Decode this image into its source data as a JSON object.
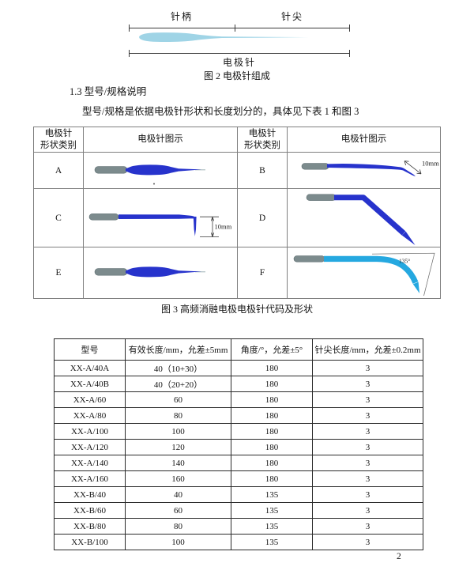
{
  "page": {
    "number": "2"
  },
  "figure2": {
    "label_handle": "针柄",
    "label_tip": "针尖",
    "label_whole": "电极针",
    "caption": "图 2 电极针组成"
  },
  "section": {
    "heading": "1.3 型号/规格说明",
    "body": "型号/规格是依据电极针形状和长度划分的，具体见下表 1 和图 3"
  },
  "figure3": {
    "caption": "图 3 高频消融电极电极针代码及形状",
    "header_category": "电极针\n形状类别",
    "header_illustration": "电极针图示",
    "shapes": [
      {
        "code": "A",
        "dim_label": ""
      },
      {
        "code": "B",
        "dim_label": "10mm"
      },
      {
        "code": "C",
        "dim_label": "10mm"
      },
      {
        "code": "D",
        "dim_label": ""
      },
      {
        "code": "E",
        "dim_label": ""
      },
      {
        "code": "F",
        "dim_label": "135°"
      }
    ]
  },
  "spec_table": {
    "headers": [
      "型号",
      "有效长度/mm，允差±5mm",
      "角度/°，允差±5°",
      "针尖长度/mm，允差±0.2mm"
    ],
    "rows": [
      [
        "XX-A/40A",
        "40（10+30）",
        "180",
        "3"
      ],
      [
        "XX-A/40B",
        "40（20+20）",
        "180",
        "3"
      ],
      [
        "XX-A/60",
        "60",
        "180",
        "3"
      ],
      [
        "XX-A/80",
        "80",
        "180",
        "3"
      ],
      [
        "XX-A/100",
        "100",
        "180",
        "3"
      ],
      [
        "XX-A/120",
        "120",
        "180",
        "3"
      ],
      [
        "XX-A/140",
        "140",
        "180",
        "3"
      ],
      [
        "XX-A/160",
        "160",
        "180",
        "3"
      ],
      [
        "XX-B/40",
        "40",
        "135",
        "3"
      ],
      [
        "XX-B/60",
        "60",
        "135",
        "3"
      ],
      [
        "XX-B/80",
        "80",
        "135",
        "3"
      ],
      [
        "XX-B/100",
        "100",
        "135",
        "3"
      ]
    ]
  },
  "colors": {
    "needle_blue": "#2733cc",
    "needle_cyan": "#25a8e0",
    "handle_gray": "#7c8b8d",
    "handle_edge": "#5d6d70",
    "pale_blue": "#9fd4e6"
  }
}
